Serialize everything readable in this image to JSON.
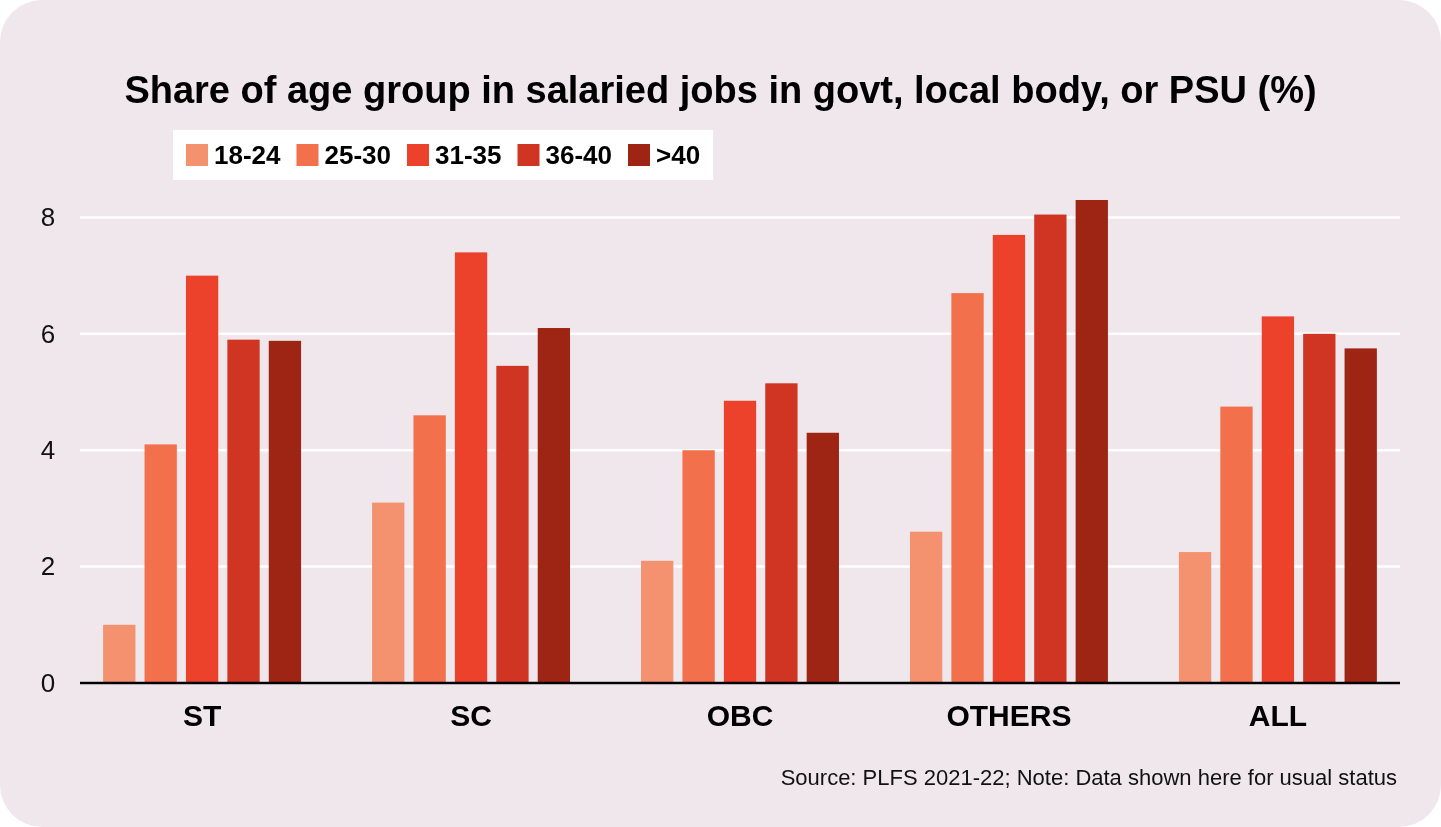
{
  "chart_data": {
    "type": "bar",
    "title": "Share of age group in salaried jobs in govt, local body, or PSU (%)",
    "categories": [
      "ST",
      "SC",
      "OBC",
      "OTHERS",
      "ALL"
    ],
    "series": [
      {
        "name": "18-24",
        "color": "#f4916e",
        "values": [
          1.0,
          3.1,
          2.1,
          2.6,
          2.25
        ]
      },
      {
        "name": "25-30",
        "color": "#f2704c",
        "values": [
          4.1,
          4.6,
          4.0,
          6.7,
          4.75
        ]
      },
      {
        "name": "31-35",
        "color": "#ec412b",
        "values": [
          7.0,
          7.4,
          4.85,
          7.7,
          6.3
        ]
      },
      {
        "name": "36-40",
        "color": "#cf3522",
        "values": [
          5.9,
          5.45,
          5.15,
          8.05,
          6.0
        ]
      },
      {
        "name": ">40",
        "color": "#9e2414",
        "values": [
          5.88,
          6.1,
          4.3,
          8.3,
          5.75
        ]
      }
    ],
    "ylim": [
      0,
      8.3
    ],
    "yticks": [
      0,
      2,
      4,
      6,
      8
    ],
    "grid": "y",
    "legend": "top left",
    "annotations": [
      "Source: PLFS 2021-22; Note: Data shown here for usual status"
    ]
  }
}
